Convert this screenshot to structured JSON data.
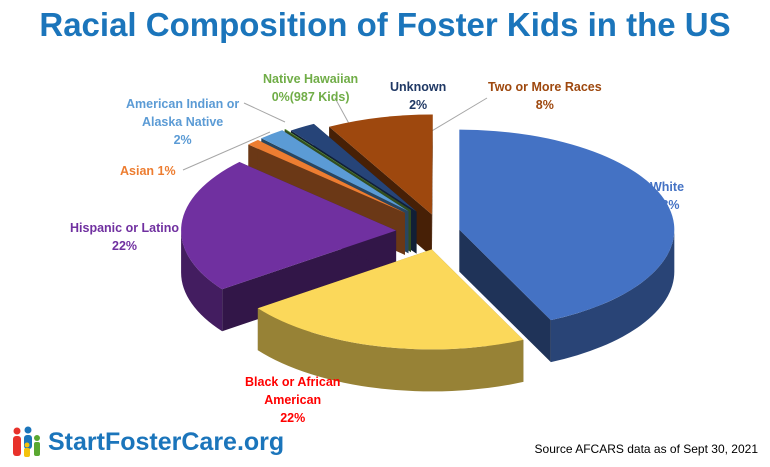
{
  "title": "Racial Composition of Foster Kids in the US",
  "chart_data": {
    "type": "pie",
    "style": "3d-exploded",
    "title": "Racial Composition of Foster Kids in the US",
    "start": "12 o'clock, clockwise",
    "slices": [
      {
        "label": "White",
        "value": 43,
        "value_label": "43%",
        "color": "#4472c4",
        "label_color": "#4472c4"
      },
      {
        "label": "Black  or African American",
        "value": 22,
        "value_label": "22%",
        "color": "#fbd85a",
        "label_color": "#ff0000"
      },
      {
        "label": "Hispanic or Latino",
        "value": 22,
        "value_label": "22%",
        "color": "#7030a0",
        "label_color": "#7030a0"
      },
      {
        "label": "Asian",
        "value": 1,
        "value_label": "1%",
        "color": "#ed7d31",
        "label_color": "#ed7d31"
      },
      {
        "label": "American Indian or Alaska Native",
        "value": 2,
        "value_label": "2%",
        "color": "#5b9bd5",
        "label_color": "#5b9bd5"
      },
      {
        "label": "Native Hawaiian",
        "value": 0,
        "value_label": "0%(987 Kids)",
        "color": "#70ad47",
        "label_color": "#70ad47"
      },
      {
        "label": "Unknown",
        "value": 2,
        "value_label": "2%",
        "color": "#264478",
        "label_color": "#1f3864"
      },
      {
        "label": "Two or More Races",
        "value": 8,
        "value_label": "8%",
        "color": "#9e480e",
        "label_color": "#9e480e"
      }
    ],
    "legend": "none (data labels)"
  },
  "labels": {
    "white": [
      "White",
      "43%"
    ],
    "black": [
      "Black  or African",
      "American",
      "22%"
    ],
    "hispanic": [
      "Hispanic or Latino",
      "22%"
    ],
    "asian": "Asian 1%",
    "aian": [
      "American Indian or",
      "Alaska Native",
      "2%"
    ],
    "nh": [
      "Native Hawaiian",
      "0%(987 Kids)"
    ],
    "unknown": [
      "Unknown",
      "2%"
    ],
    "two": [
      "Two or More Races",
      "8%"
    ]
  },
  "logo": "StartFosterCare.org",
  "source": "Source AFCARS data as of Sept 30, 2021"
}
